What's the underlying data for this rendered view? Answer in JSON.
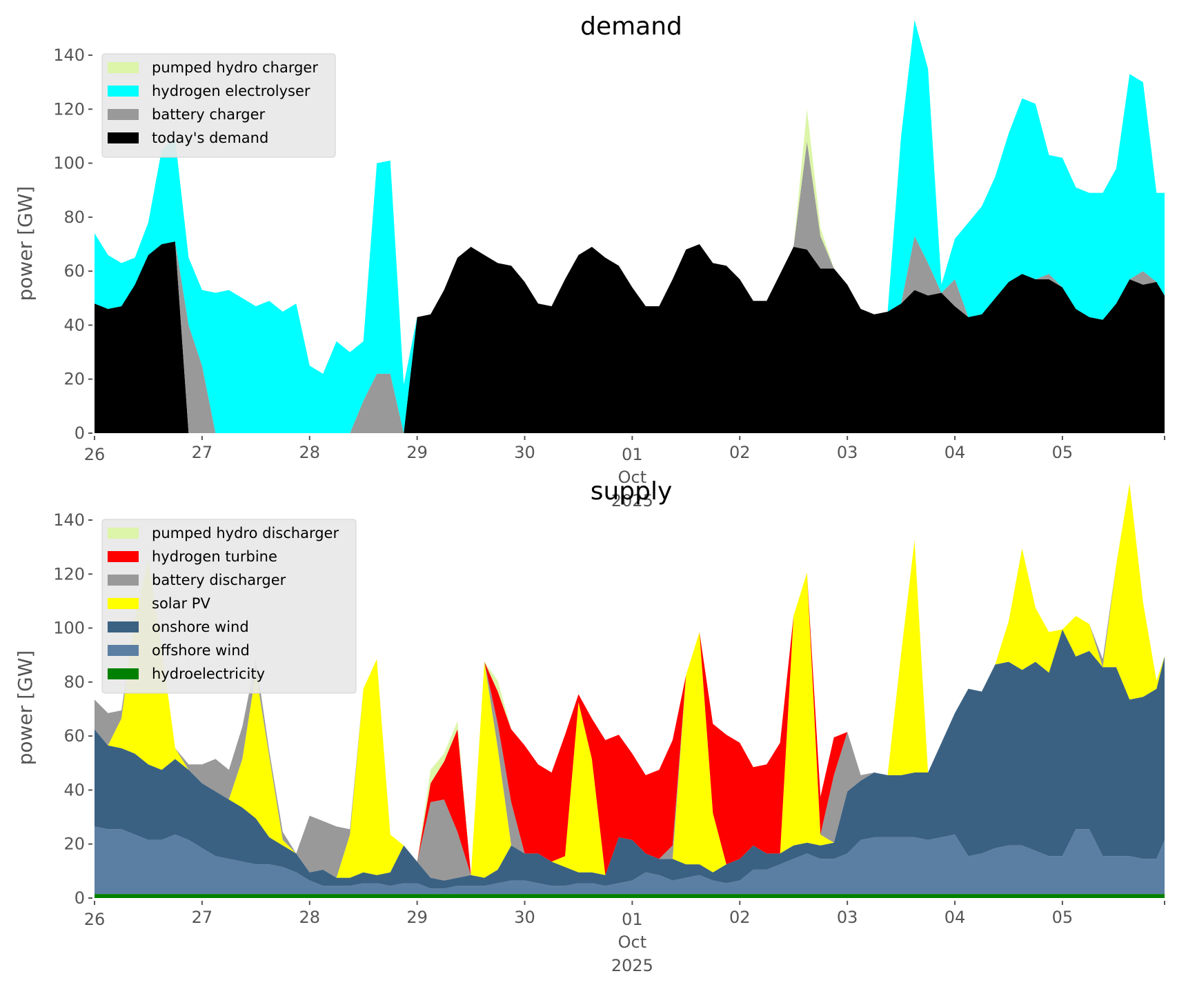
{
  "chart_data": [
    {
      "type": "area",
      "stacked": true,
      "title": "demand",
      "xlabel": "",
      "x_tick_labels": [
        "26",
        "27",
        "28",
        "29",
        "30",
        "01",
        "02",
        "03",
        "04",
        "05"
      ],
      "x_sublabel_month": "Oct",
      "x_sublabel_year": "2025",
      "ylabel": "power [GW]",
      "ylim": [
        0,
        140
      ],
      "y_ticks": [
        0,
        20,
        40,
        60,
        80,
        100,
        120,
        140
      ],
      "grid": false,
      "legend_position": "top-left",
      "x_start_day": 0,
      "x_end_day": 9.95,
      "sample_step_hours": 3,
      "series": [
        {
          "name": "today's demand",
          "color": "#000000",
          "values": [
            48,
            46,
            47,
            55,
            66,
            70,
            71,
            0,
            0,
            0,
            0,
            0,
            0,
            0,
            0,
            0,
            0,
            0,
            0,
            0,
            0,
            0,
            0,
            0,
            43,
            44,
            53,
            65,
            69,
            66,
            63,
            62,
            56,
            48,
            47,
            57,
            66,
            69,
            65,
            62,
            54,
            47,
            47,
            57,
            68,
            70,
            63,
            62,
            57,
            49,
            49,
            59,
            69,
            68,
            61,
            61,
            55,
            46,
            44,
            45,
            48,
            53,
            51,
            52,
            47,
            43,
            44,
            50,
            56,
            59,
            57,
            57,
            54,
            46,
            43,
            42,
            48,
            57,
            55,
            56,
            51
          ]
        },
        {
          "name": "battery charger",
          "color": "#999999",
          "values": [
            0,
            0,
            0,
            0,
            0,
            0,
            0,
            40,
            25,
            0,
            0,
            0,
            0,
            0,
            0,
            0,
            0,
            0,
            0,
            0,
            12,
            22,
            22,
            0,
            0,
            0,
            0,
            0,
            0,
            0,
            0,
            0,
            0,
            0,
            0,
            0,
            0,
            0,
            0,
            0,
            0,
            0,
            0,
            0,
            0,
            0,
            0,
            0,
            0,
            0,
            0,
            0,
            0,
            40,
            12,
            0,
            0,
            0,
            0,
            0,
            0,
            20,
            12,
            0,
            10,
            0,
            0,
            0,
            0,
            0,
            0,
            2,
            0,
            0,
            0,
            0,
            0,
            0,
            5,
            0,
            0
          ]
        },
        {
          "name": "hydrogen electrolyser",
          "color": "#00ffff",
          "values": [
            26,
            20,
            16,
            10,
            12,
            35,
            38,
            25,
            28,
            52,
            53,
            50,
            47,
            49,
            45,
            48,
            25,
            22,
            34,
            30,
            22,
            78,
            79,
            18,
            0,
            0,
            0,
            0,
            0,
            0,
            0,
            0,
            0,
            0,
            0,
            0,
            0,
            0,
            0,
            0,
            0,
            0,
            0,
            0,
            0,
            0,
            0,
            0,
            0,
            0,
            0,
            0,
            0,
            0,
            0,
            0,
            0,
            0,
            0,
            0,
            62,
            80,
            72,
            3,
            15,
            35,
            40,
            45,
            55,
            65,
            65,
            44,
            48,
            45,
            46,
            47,
            50,
            76,
            70,
            33,
            38
          ]
        },
        {
          "name": "pumped hydro charger",
          "color": "#dcf5a8",
          "values": [
            0,
            0,
            0,
            0,
            0,
            0,
            0,
            0,
            0,
            0,
            0,
            0,
            0,
            0,
            0,
            0,
            0,
            0,
            0,
            0,
            0,
            0,
            0,
            0,
            0,
            0,
            0,
            0,
            0,
            0,
            0,
            0,
            0,
            0,
            0,
            0,
            0,
            0,
            0,
            0,
            0,
            0,
            0,
            0,
            0,
            0,
            0,
            0,
            0,
            0,
            0,
            0,
            0,
            12,
            3,
            0,
            0,
            0,
            0,
            0,
            0,
            0,
            0,
            0,
            0,
            0,
            0,
            0,
            0,
            0,
            0,
            0,
            0,
            0,
            0,
            0,
            0,
            0,
            0,
            0,
            0
          ]
        }
      ]
    },
    {
      "type": "area",
      "stacked": true,
      "title": "supply",
      "xlabel": "",
      "x_tick_labels": [
        "26",
        "27",
        "28",
        "29",
        "30",
        "01",
        "02",
        "03",
        "04",
        "05"
      ],
      "x_sublabel_month": "Oct",
      "x_sublabel_year": "2025",
      "ylabel": "power [GW]",
      "ylim": [
        0,
        140
      ],
      "y_ticks": [
        0,
        20,
        40,
        60,
        80,
        100,
        120,
        140
      ],
      "grid": false,
      "legend_position": "top-left",
      "x_start_day": 0,
      "x_end_day": 9.95,
      "sample_step_hours": 3,
      "series": [
        {
          "name": "hydroelectricity",
          "color": "#008000",
          "values": [
            1.5,
            1.5,
            1.5,
            1.5,
            1.5,
            1.5,
            1.5,
            1.5,
            1.5,
            1.5,
            1.5,
            1.5,
            1.5,
            1.5,
            1.5,
            1.5,
            1.5,
            1.5,
            1.5,
            1.5,
            1.5,
            1.5,
            1.5,
            1.5,
            1.5,
            1.5,
            1.5,
            1.5,
            1.5,
            1.5,
            1.5,
            1.5,
            1.5,
            1.5,
            1.5,
            1.5,
            1.5,
            1.5,
            1.5,
            1.5,
            1.5,
            1.5,
            1.5,
            1.5,
            1.5,
            1.5,
            1.5,
            1.5,
            1.5,
            1.5,
            1.5,
            1.5,
            1.5,
            1.5,
            1.5,
            1.5,
            1.5,
            1.5,
            1.5,
            1.5,
            1.5,
            1.5,
            1.5,
            1.5,
            1.5,
            1.5,
            1.5,
            1.5,
            1.5,
            1.5,
            1.5,
            1.5,
            1.5,
            1.5,
            1.5,
            1.5,
            1.5,
            1.5,
            1.5,
            1.5,
            1.5
          ]
        },
        {
          "name": "offshore wind",
          "color": "#5b7fa3",
          "values": [
            25,
            24,
            24,
            22,
            20,
            20,
            22,
            20,
            17,
            14,
            13,
            12,
            11,
            11,
            10,
            8,
            5,
            3,
            3,
            3,
            4,
            4,
            3,
            4,
            4,
            2,
            2,
            3,
            3,
            3,
            4,
            5,
            5,
            4,
            3,
            3,
            4,
            4,
            3,
            4,
            5,
            8,
            7,
            5,
            6,
            7,
            5,
            4,
            5,
            9,
            9,
            11,
            13,
            15,
            13,
            13,
            15,
            20,
            21,
            21,
            21,
            21,
            20,
            21,
            22,
            14,
            15,
            17,
            18,
            18,
            16,
            14,
            14,
            24,
            24,
            14,
            14,
            14,
            13,
            13,
            20
          ]
        },
        {
          "name": "onshore wind",
          "color": "#3b6182",
          "values": [
            36,
            31,
            30,
            30,
            28,
            26,
            28,
            26,
            24,
            24,
            22,
            20,
            17,
            10,
            8,
            7,
            3,
            6,
            3,
            3,
            4,
            3,
            5,
            14,
            8,
            4,
            3,
            3,
            4,
            3,
            5,
            13,
            10,
            11,
            9,
            7,
            4,
            4,
            4,
            17,
            15,
            7,
            6,
            8,
            5,
            4,
            3,
            7,
            8,
            9,
            6,
            4,
            5,
            4,
            5,
            6,
            23,
            22,
            24,
            23,
            23,
            24,
            25,
            35,
            45,
            62,
            60,
            68,
            68,
            65,
            70,
            68,
            84,
            64,
            66,
            70,
            70,
            58,
            60,
            63,
            68
          ]
        },
        {
          "name": "solar PV",
          "color": "#ffff00",
          "values": [
            0,
            0,
            11,
            50,
            76,
            45,
            4,
            0,
            0,
            0,
            0,
            18,
            54,
            30,
            2,
            0,
            0,
            0,
            0,
            16,
            68,
            80,
            14,
            0,
            0,
            0,
            0,
            0,
            0,
            80,
            45,
            0,
            0,
            0,
            0,
            4,
            63,
            42,
            0,
            0,
            0,
            0,
            0,
            0,
            70,
            86,
            22,
            0,
            0,
            0,
            0,
            0,
            85,
            100,
            4,
            0,
            0,
            0,
            0,
            0,
            45,
            86,
            0,
            0,
            0,
            0,
            0,
            0,
            15,
            45,
            20,
            15,
            0,
            15,
            10,
            0,
            38,
            80,
            35,
            3,
            0
          ]
        },
        {
          "name": "battery discharger",
          "color": "#999999",
          "values": [
            11,
            12,
            3,
            0,
            0,
            0,
            0,
            2,
            7,
            12,
            11,
            12,
            5,
            2,
            3,
            0,
            21,
            18,
            19,
            2,
            0,
            0,
            0,
            0,
            0,
            28,
            30,
            17,
            0,
            0,
            9,
            16,
            0,
            0,
            0,
            0,
            0,
            0,
            0,
            0,
            0,
            0,
            0,
            5,
            0,
            0,
            0,
            0,
            0,
            0,
            0,
            0,
            0,
            0,
            0,
            25,
            22,
            2,
            0,
            0,
            0,
            0,
            0,
            0,
            0,
            0,
            0,
            0,
            0,
            0,
            0,
            0,
            0,
            0,
            0,
            3,
            0,
            0,
            0,
            0,
            0
          ]
        },
        {
          "name": "hydrogen turbine",
          "color": "#ff0000",
          "values": [
            0,
            0,
            0,
            0,
            0,
            0,
            0,
            0,
            0,
            0,
            0,
            0,
            0,
            0,
            0,
            0,
            0,
            0,
            0,
            0,
            0,
            0,
            0,
            0,
            0,
            7,
            14,
            38,
            0,
            0,
            12,
            27,
            40,
            33,
            33,
            45,
            3,
            15,
            50,
            38,
            32,
            29,
            33,
            39,
            0,
            0,
            33,
            48,
            43,
            29,
            33,
            41,
            0,
            0,
            14,
            14,
            0,
            0,
            0,
            0,
            0,
            0,
            0,
            0,
            0,
            0,
            0,
            0,
            0,
            0,
            0,
            0,
            0,
            0,
            0,
            0,
            0,
            0,
            0,
            0,
            0
          ]
        },
        {
          "name": "pumped hydro discharger",
          "color": "#dcf5a8",
          "values": [
            0,
            0,
            0,
            0,
            0,
            0,
            0,
            0,
            0,
            0,
            0,
            0,
            0,
            0,
            0,
            0,
            0,
            0,
            0,
            0,
            0,
            0,
            0,
            0,
            0,
            5,
            3,
            3,
            0,
            0,
            4,
            0,
            0,
            0,
            0,
            0,
            0,
            0,
            0,
            0,
            0,
            0,
            0,
            0,
            0,
            0,
            0,
            0,
            0,
            0,
            0,
            0,
            0,
            0,
            0,
            0,
            0,
            0,
            0,
            0,
            0,
            0,
            0,
            0,
            0,
            0,
            0,
            0,
            0,
            0,
            0,
            0,
            0,
            0,
            0,
            0,
            0,
            0,
            0,
            0,
            0
          ]
        }
      ]
    }
  ],
  "panels": [
    {
      "legend": [
        {
          "label": "pumped hydro charger",
          "color": "#dcf5a8"
        },
        {
          "label": "hydrogen electrolyser",
          "color": "#00ffff"
        },
        {
          "label": "battery charger",
          "color": "#999999"
        },
        {
          "label": "today's demand",
          "color": "#000000"
        }
      ]
    },
    {
      "legend": [
        {
          "label": "pumped hydro discharger",
          "color": "#dcf5a8"
        },
        {
          "label": "hydrogen turbine",
          "color": "#ff0000"
        },
        {
          "label": "battery discharger",
          "color": "#999999"
        },
        {
          "label": "solar PV",
          "color": "#ffff00"
        },
        {
          "label": "onshore wind",
          "color": "#3b6182"
        },
        {
          "label": "offshore wind",
          "color": "#5b7fa3"
        },
        {
          "label": "hydroelectricity",
          "color": "#008000"
        }
      ]
    }
  ]
}
